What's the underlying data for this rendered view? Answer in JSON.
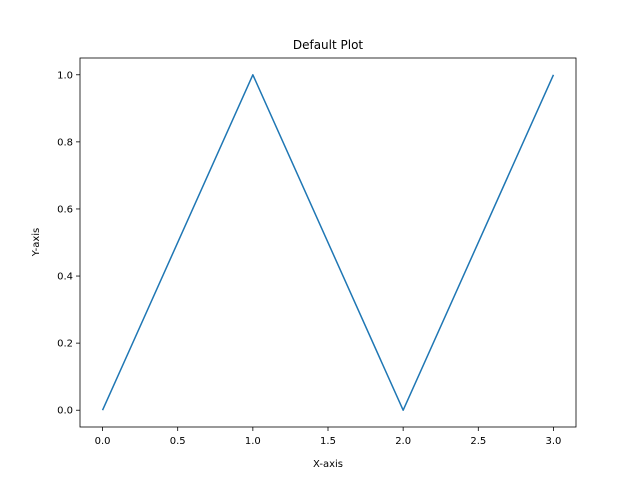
{
  "chart_data": {
    "type": "line",
    "title": "Default Plot",
    "xlabel": "X-axis",
    "ylabel": "Y-axis",
    "xlim": [
      -0.15,
      3.15
    ],
    "ylim": [
      -0.05,
      1.05
    ],
    "xticks": [
      0.0,
      0.5,
      1.0,
      1.5,
      2.0,
      2.5,
      3.0
    ],
    "xtick_labels": [
      "0.0",
      "0.5",
      "1.0",
      "1.5",
      "2.0",
      "2.5",
      "3.0"
    ],
    "yticks": [
      0.0,
      0.2,
      0.4,
      0.6,
      0.8,
      1.0
    ],
    "ytick_labels": [
      "0.0",
      "0.2",
      "0.4",
      "0.6",
      "0.8",
      "1.0"
    ],
    "grid": false,
    "series": [
      {
        "color": "#1f77b4",
        "points": [
          {
            "x": 0,
            "y": 0
          },
          {
            "x": 1,
            "y": 1
          },
          {
            "x": 2,
            "y": 0
          },
          {
            "x": 3,
            "y": 1
          }
        ]
      }
    ]
  }
}
